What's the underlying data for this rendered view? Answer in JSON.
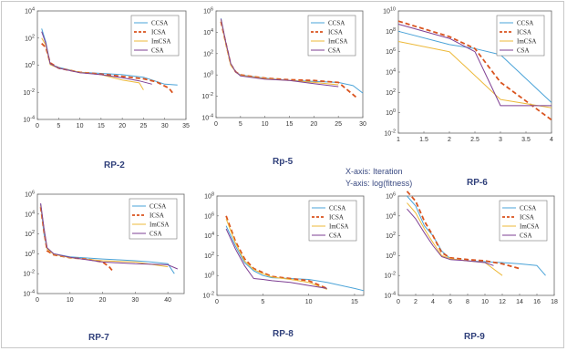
{
  "axis_note": {
    "x": "X-axis: Iteration",
    "y": "Y-axis: log(fitness)"
  },
  "colors": {
    "CCSA": "#4aa3d8",
    "ICSA": "#d9531e",
    "ImCSA": "#edb93a",
    "CSA": "#7e3f93"
  },
  "legend": [
    "CCSA",
    "ICSA",
    "ImCSA",
    "CSA"
  ],
  "chart_data": [
    {
      "type": "line",
      "label": "RP-2",
      "yscale": "log",
      "xlim": [
        0,
        35
      ],
      "xticks": [
        0,
        5,
        10,
        15,
        20,
        25,
        30,
        35
      ],
      "ylim": [
        0.0001,
        10000
      ],
      "yticks": [
        "10^-4",
        "10^-2",
        "10^0",
        "10^2",
        "10^4"
      ],
      "series": [
        {
          "name": "CCSA",
          "x": [
            1,
            2,
            3,
            5,
            10,
            15,
            20,
            25,
            30,
            33
          ],
          "y": [
            500,
            50,
            1.2,
            0.7,
            0.3,
            0.25,
            0.2,
            0.13,
            0.04,
            0.035
          ]
        },
        {
          "name": "ICSA",
          "x": [
            1,
            2,
            3,
            5,
            10,
            15,
            20,
            25,
            28,
            31,
            32
          ],
          "y": [
            40,
            20,
            1.5,
            0.6,
            0.3,
            0.22,
            0.15,
            0.1,
            0.06,
            0.02,
            0.008
          ]
        },
        {
          "name": "ImCSA",
          "x": [
            1,
            2,
            3,
            5,
            10,
            15,
            20,
            24,
            25
          ],
          "y": [
            100,
            30,
            1.1,
            0.6,
            0.3,
            0.2,
            0.08,
            0.05,
            0.015
          ]
        },
        {
          "name": "CSA",
          "x": [
            1,
            2,
            3,
            5,
            10,
            15,
            20,
            24,
            27
          ],
          "y": [
            300,
            40,
            1.3,
            0.6,
            0.28,
            0.2,
            0.12,
            0.07,
            0.04
          ]
        }
      ]
    },
    {
      "type": "line",
      "label": "Rp-5",
      "yscale": "log",
      "xlim": [
        0,
        30
      ],
      "xticks": [
        0,
        5,
        10,
        15,
        20,
        25,
        30
      ],
      "ylim": [
        0.0001,
        1000000
      ],
      "yticks": [
        "10^-4",
        "10^-2",
        "10^0",
        "10^2",
        "10^4",
        "10^6"
      ],
      "series": [
        {
          "name": "CCSA",
          "x": [
            1,
            2,
            3,
            4,
            5,
            10,
            15,
            20,
            25,
            28,
            30
          ],
          "y": [
            200000,
            1000,
            10,
            2,
            1,
            0.5,
            0.3,
            0.25,
            0.2,
            0.1,
            0.02
          ]
        },
        {
          "name": "ICSA",
          "x": [
            1,
            2,
            3,
            4,
            5,
            10,
            15,
            20,
            25,
            29
          ],
          "y": [
            100000,
            1000,
            10,
            2,
            1,
            0.5,
            0.35,
            0.3,
            0.2,
            0.006
          ]
        },
        {
          "name": "ImCSA",
          "x": [
            1,
            2,
            3,
            4,
            5,
            10,
            15,
            20,
            25
          ],
          "y": [
            150000,
            800,
            8,
            2,
            0.9,
            0.45,
            0.3,
            0.2,
            0.12
          ]
        },
        {
          "name": "CSA",
          "x": [
            1,
            2,
            3,
            4,
            5,
            10,
            15,
            20,
            25
          ],
          "y": [
            180000,
            1200,
            12,
            2,
            0.8,
            0.4,
            0.3,
            0.15,
            0.08
          ]
        }
      ]
    },
    {
      "type": "line",
      "label": "RP-6",
      "yscale": "log",
      "xlim": [
        1,
        4
      ],
      "xticks": [
        1,
        1.5,
        2,
        2.5,
        3,
        3.5,
        4
      ],
      "ylim": [
        0.01,
        10000000000
      ],
      "yticks": [
        "10^-2",
        "10^0",
        "10^2",
        "10^4",
        "10^6",
        "10^8",
        "10^10"
      ],
      "series": [
        {
          "name": "CCSA",
          "x": [
            1,
            2,
            2.5,
            3,
            4
          ],
          "y": [
            100000000,
            5000000,
            2000000,
            500000,
            10
          ]
        },
        {
          "name": "ICSA",
          "x": [
            1,
            2,
            2.5,
            3,
            4
          ],
          "y": [
            1000000000,
            30000000,
            2000000,
            1000,
            0.2
          ]
        },
        {
          "name": "ImCSA",
          "x": [
            1,
            2,
            3,
            4
          ],
          "y": [
            10000000,
            1000000,
            20,
            3
          ]
        },
        {
          "name": "CSA",
          "x": [
            1,
            2,
            2.5,
            3,
            4
          ],
          "y": [
            500000000,
            20000000,
            1000000,
            5,
            5
          ]
        }
      ]
    },
    {
      "type": "line",
      "label": "RP-7",
      "yscale": "log",
      "xlim": [
        0,
        45
      ],
      "xticks": [
        0,
        10,
        20,
        30,
        40
      ],
      "ylim": [
        0.0001,
        1000000
      ],
      "yticks": [
        "10^-4",
        "10^-2",
        "10^0",
        "10^2",
        "10^4",
        "10^6"
      ],
      "series": [
        {
          "name": "CCSA",
          "x": [
            1,
            2,
            3,
            5,
            10,
            20,
            25,
            30,
            35,
            40,
            42
          ],
          "y": [
            100000,
            100,
            3,
            1,
            0.5,
            0.3,
            0.25,
            0.2,
            0.15,
            0.1,
            0.01
          ]
        },
        {
          "name": "ICSA",
          "x": [
            1,
            2,
            3,
            5,
            10,
            15,
            20,
            22,
            23
          ],
          "y": [
            50000,
            200,
            2,
            0.8,
            0.4,
            0.3,
            0.15,
            0.05,
            0.02
          ]
        },
        {
          "name": "ImCSA",
          "x": [
            1,
            2,
            3,
            5,
            10,
            20,
            30,
            40
          ],
          "y": [
            80000,
            300,
            3,
            0.9,
            0.4,
            0.2,
            0.15,
            0.05
          ]
        },
        {
          "name": "CSA",
          "x": [
            1,
            2,
            3,
            5,
            10,
            20,
            30,
            40,
            43
          ],
          "y": [
            120000,
            400,
            4,
            1,
            0.45,
            0.15,
            0.1,
            0.08,
            0.03
          ]
        }
      ]
    },
    {
      "type": "line",
      "label": "RP-8",
      "yscale": "log",
      "xlim": [
        0,
        16
      ],
      "xticks": [
        0,
        5,
        10,
        15
      ],
      "ylim": [
        0.01,
        100000000
      ],
      "yticks": [
        "10^-2",
        "10^0",
        "10^2",
        "10^4",
        "10^6",
        "10^8"
      ],
      "series": [
        {
          "name": "CCSA",
          "x": [
            1,
            2,
            3,
            4,
            5,
            6,
            8,
            10,
            12,
            15,
            16
          ],
          "y": [
            100000,
            1000,
            20,
            3,
            1,
            0.6,
            0.5,
            0.4,
            0.2,
            0.05,
            0.03
          ]
        },
        {
          "name": "ICSA",
          "x": [
            1,
            2,
            3,
            4,
            5,
            6,
            8,
            10,
            12
          ],
          "y": [
            1000000,
            3000,
            50,
            5,
            2,
            0.8,
            0.5,
            0.3,
            0.05
          ]
        },
        {
          "name": "ImCSA",
          "x": [
            1,
            2,
            3,
            4,
            5,
            6,
            8,
            10,
            12
          ],
          "y": [
            500000,
            2000,
            30,
            4,
            1.5,
            0.7,
            0.4,
            0.2,
            0.04
          ]
        },
        {
          "name": "CSA",
          "x": [
            1,
            2,
            3,
            4,
            5,
            6,
            8,
            10,
            12
          ],
          "y": [
            50000,
            500,
            10,
            0.5,
            0.4,
            0.3,
            0.2,
            0.1,
            0.05
          ]
        }
      ]
    },
    {
      "type": "line",
      "label": "RP-9",
      "yscale": "log",
      "xlim": [
        0,
        18
      ],
      "xticks": [
        0,
        2,
        4,
        6,
        8,
        10,
        12,
        14,
        16,
        18
      ],
      "ylim": [
        0.0001,
        1000000
      ],
      "yticks": [
        "10^-4",
        "10^-2",
        "10^0",
        "10^2",
        "10^4",
        "10^6"
      ],
      "series": [
        {
          "name": "CCSA",
          "x": [
            1,
            2,
            3,
            4,
            5,
            6,
            8,
            10,
            12,
            14,
            16,
            17
          ],
          "y": [
            1000000,
            100000,
            1000,
            100,
            3,
            0.5,
            0.3,
            0.25,
            0.2,
            0.15,
            0.1,
            0.01
          ]
        },
        {
          "name": "ICSA",
          "x": [
            1,
            2,
            3,
            4,
            5,
            6,
            8,
            10,
            12,
            14
          ],
          "y": [
            3000000,
            300000,
            3000,
            100,
            2,
            0.6,
            0.4,
            0.3,
            0.15,
            0.05
          ]
        },
        {
          "name": "ImCSA",
          "x": [
            1,
            2,
            3,
            4,
            5,
            6,
            8,
            10,
            12
          ],
          "y": [
            200000,
            20000,
            500,
            20,
            1,
            0.5,
            0.3,
            0.2,
            0.01
          ]
        },
        {
          "name": "CSA",
          "x": [
            1,
            2,
            3,
            4,
            5,
            6,
            8,
            10,
            11
          ],
          "y": [
            50000,
            5000,
            200,
            10,
            0.8,
            0.4,
            0.3,
            0.2,
            0.1
          ]
        }
      ]
    }
  ]
}
